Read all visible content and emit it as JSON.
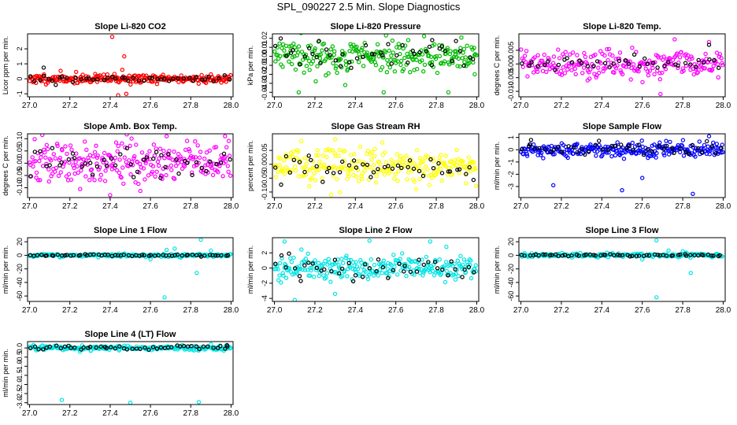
{
  "figure": {
    "title": "SPL_090227  2.5 Min. Slope Diagnostics",
    "point_colors": {
      "black": "#000000"
    }
  },
  "chart_data": [
    {
      "type": "scatter",
      "title": "Slope Li-820 CO2",
      "ylabel": "Licor ppm per min.",
      "xlabel": "",
      "xlim": [
        26.99,
        28.01
      ],
      "ylim": [
        -1.2,
        3.0
      ],
      "xticks": [
        27.0,
        27.2,
        27.4,
        27.6,
        27.8,
        28.0
      ],
      "xtick_labels": [
        "27.0",
        "27.2",
        "27.4",
        "27.6",
        "27.8",
        "28.0"
      ],
      "yticks": [
        -1,
        0,
        1,
        2
      ],
      "ytick_labels": [
        "-1",
        "0",
        "1",
        "2"
      ],
      "grid": false,
      "series": [
        {
          "name": "all",
          "color": "#ff0000",
          "center": 0.0,
          "spread": 0.15,
          "count": 260,
          "seed": 11,
          "outliers": [
            [
              27.41,
              2.8
            ],
            [
              27.44,
              -1.1
            ],
            [
              27.47,
              1.5
            ],
            [
              27.48,
              -1.0
            ],
            [
              27.46,
              0.6
            ]
          ]
        },
        {
          "name": "black",
          "color": "#000000",
          "center": 0.0,
          "spread": 0.12,
          "count": 45,
          "seed": 12,
          "outliers": [
            [
              27.07,
              0.75
            ],
            [
              27.13,
              -0.4
            ]
          ]
        }
      ]
    },
    {
      "type": "scatter",
      "title": "Slope Li-820 Pressure",
      "ylabel": "kPa per min.",
      "xlabel": "",
      "xlim": [
        26.99,
        28.01
      ],
      "ylim": [
        -0.045,
        0.025
      ],
      "xticks": [
        27.0,
        27.2,
        27.4,
        27.6,
        27.8,
        28.0
      ],
      "xtick_labels": [
        "27.0",
        "27.2",
        "27.4",
        "27.6",
        "27.8",
        "28.0"
      ],
      "yticks": [
        -0.04,
        -0.03,
        -0.02,
        -0.01,
        0.0,
        0.01,
        0.02
      ],
      "ytick_labels": [
        "-0.04",
        "-0.03",
        "-0.02",
        "-0.01",
        "0.00",
        "0.01",
        "0.02"
      ],
      "grid": false,
      "series": [
        {
          "name": "all",
          "color": "#00bb00",
          "center": 0.0,
          "spread": 0.009,
          "count": 260,
          "seed": 21,
          "outliers": [
            [
              27.12,
              -0.04
            ],
            [
              27.35,
              -0.032
            ],
            [
              27.54,
              -0.04
            ],
            [
              27.86,
              -0.04
            ],
            [
              27.99,
              -0.02
            ]
          ]
        },
        {
          "name": "black",
          "color": "#000000",
          "center": 0.002,
          "spread": 0.008,
          "count": 45,
          "seed": 22,
          "outliers": [
            [
              27.22,
              0.017
            ],
            [
              27.78,
              0.018
            ]
          ]
        }
      ]
    },
    {
      "type": "scatter",
      "title": "Slope Li-820 Temp.",
      "ylabel": "degrees C per min.",
      "xlabel": "",
      "xlim": [
        26.99,
        28.01
      ],
      "ylim": [
        -0.012,
        0.011
      ],
      "xticks": [
        27.0,
        27.2,
        27.4,
        27.6,
        27.8,
        28.0
      ],
      "xtick_labels": [
        "27.0",
        "27.2",
        "27.4",
        "27.6",
        "27.8",
        "28.0"
      ],
      "yticks": [
        -0.01,
        -0.005,
        0.0,
        0.005
      ],
      "ytick_labels": [
        "-0.010",
        "-0.005",
        "0.000",
        "0.005"
      ],
      "grid": false,
      "series": [
        {
          "name": "all",
          "color": "#ff00ff",
          "center": 0.0,
          "spread": 0.0025,
          "count": 240,
          "seed": 31,
          "outliers": [
            [
              27.76,
              0.009
            ],
            [
              27.69,
              -0.011
            ],
            [
              27.33,
              -0.006
            ],
            [
              27.93,
              0.008
            ]
          ]
        },
        {
          "name": "black",
          "color": "#000000",
          "center": 0.0005,
          "spread": 0.0015,
          "count": 40,
          "seed": 32,
          "outliers": [
            [
              27.93,
              0.007
            ]
          ]
        }
      ]
    },
    {
      "type": "scatter",
      "title": "Slope Amb. Box Temp.",
      "ylabel": "degrees C per min.",
      "xlabel": "",
      "xlim": [
        26.99,
        28.01
      ],
      "ylim": [
        -0.14,
        0.12
      ],
      "xticks": [
        27.0,
        27.2,
        27.4,
        27.6,
        27.8,
        28.0
      ],
      "xtick_labels": [
        "27.0",
        "27.2",
        "27.4",
        "27.6",
        "27.8",
        "28.0"
      ],
      "yticks": [
        -0.1,
        -0.05,
        0.0,
        0.05,
        0.1
      ],
      "ytick_labels": [
        "-0.10",
        "-0.05",
        "0.00",
        "0.05",
        "0.10"
      ],
      "grid": false,
      "series": [
        {
          "name": "all",
          "color": "#ff00ff",
          "center": 0.0,
          "spread": 0.045,
          "count": 260,
          "seed": 41,
          "outliers": [
            [
              27.4,
              -0.13
            ],
            [
              27.68,
              0.11
            ],
            [
              27.97,
              0.11
            ]
          ]
        },
        {
          "name": "black",
          "color": "#000000",
          "center": 0.005,
          "spread": 0.03,
          "count": 45,
          "seed": 42,
          "outliers": [
            [
              27.65,
              -0.06
            ]
          ]
        }
      ]
    },
    {
      "type": "scatter",
      "title": "Slope Gas Stream RH",
      "ylabel": "percent per min.",
      "xlabel": "",
      "xlim": [
        26.99,
        28.01
      ],
      "ylim": [
        -0.12,
        0.11
      ],
      "xticks": [
        27.0,
        27.2,
        27.4,
        27.6,
        27.8,
        28.0
      ],
      "xtick_labels": [
        "27.0",
        "27.2",
        "27.4",
        "27.6",
        "27.8",
        "28.0"
      ],
      "yticks": [
        -0.1,
        -0.05,
        0.0,
        0.05
      ],
      "ytick_labels": [
        "-0.10",
        "-0.05",
        "0.00",
        "0.05"
      ],
      "grid": false,
      "series": [
        {
          "name": "all",
          "color": "#ffff00",
          "center": -0.005,
          "spread": 0.03,
          "count": 260,
          "seed": 51,
          "outliers": [
            [
              27.28,
              -0.11
            ],
            [
              27.3,
              0.09
            ],
            [
              27.7,
              -0.09
            ]
          ]
        },
        {
          "name": "black",
          "color": "#000000",
          "center": -0.01,
          "spread": 0.025,
          "count": 45,
          "seed": 52,
          "outliers": []
        }
      ]
    },
    {
      "type": "scatter",
      "title": "Slope Sample Flow",
      "ylabel": "ml/min per min.",
      "xlabel": "",
      "xlim": [
        26.99,
        28.01
      ],
      "ylim": [
        -3.9,
        1.3
      ],
      "xticks": [
        27.0,
        27.2,
        27.4,
        27.6,
        27.8,
        28.0
      ],
      "xtick_labels": [
        "27.0",
        "27.2",
        "27.4",
        "27.6",
        "27.8",
        "28.0"
      ],
      "yticks": [
        -3,
        -2,
        -1,
        0,
        1
      ],
      "ytick_labels": [
        "-3",
        "-2",
        "-1",
        "0",
        "1"
      ],
      "grid": false,
      "series": [
        {
          "name": "all",
          "color": "#0000ff",
          "center": 0.0,
          "spread": 0.3,
          "count": 260,
          "seed": 61,
          "outliers": [
            [
              27.16,
              -2.9
            ],
            [
              27.5,
              -3.3
            ],
            [
              27.6,
              -2.3
            ],
            [
              27.85,
              -3.6
            ],
            [
              27.93,
              1.1
            ]
          ]
        },
        {
          "name": "black",
          "color": "#000000",
          "center": 0.05,
          "spread": 0.3,
          "count": 45,
          "seed": 62,
          "outliers": [
            [
              27.05,
              0.8
            ]
          ]
        }
      ]
    },
    {
      "type": "scatter",
      "title": "Slope Line 1 Flow",
      "ylabel": "ml/min per min.",
      "xlabel": "",
      "xlim": [
        26.99,
        28.01
      ],
      "ylim": [
        -68,
        26
      ],
      "xticks": [
        27.0,
        27.2,
        27.4,
        27.6,
        27.8,
        28.0
      ],
      "xtick_labels": [
        "27.0",
        "27.2",
        "27.4",
        "27.6",
        "27.8",
        "28.0"
      ],
      "yticks": [
        -60,
        -40,
        -20,
        0,
        20
      ],
      "ytick_labels": [
        "-60",
        "-40",
        "-20",
        "0",
        "20"
      ],
      "grid": false,
      "series": [
        {
          "name": "all",
          "color": "#00e5e5",
          "center": 0.0,
          "spread": 1.2,
          "count": 200,
          "seed": 71,
          "outliers": [
            [
              27.67,
              -62
            ],
            [
              27.83,
              -26
            ],
            [
              27.68,
              8
            ],
            [
              27.72,
              10
            ],
            [
              27.85,
              23
            ],
            [
              27.9,
              7
            ],
            [
              27.6,
              -6
            ]
          ]
        },
        {
          "name": "black",
          "color": "#000000",
          "center": 0.0,
          "spread": 0.6,
          "count": 60,
          "seed": 72,
          "outliers": []
        }
      ]
    },
    {
      "type": "scatter",
      "title": "Slope Line 2 Flow",
      "ylabel": "ml/min per min.",
      "xlabel": "",
      "xlim": [
        26.99,
        28.01
      ],
      "ylim": [
        -4.4,
        4.0
      ],
      "xticks": [
        27.0,
        27.2,
        27.4,
        27.6,
        27.8,
        28.0
      ],
      "xtick_labels": [
        "27.0",
        "27.2",
        "27.4",
        "27.6",
        "27.8",
        "28.0"
      ],
      "yticks": [
        -4,
        -2,
        0,
        2
      ],
      "ytick_labels": [
        "-4",
        "-2",
        "0",
        "2"
      ],
      "grid": false,
      "series": [
        {
          "name": "all",
          "color": "#00e5e5",
          "center": 0.0,
          "spread": 0.8,
          "count": 260,
          "seed": 81,
          "outliers": [
            [
              27.1,
              -4.2
            ],
            [
              27.3,
              -3.4
            ],
            [
              27.05,
              3.5
            ],
            [
              27.47,
              3.6
            ],
            [
              27.77,
              3.5
            ],
            [
              27.85,
              2.8
            ]
          ]
        },
        {
          "name": "black",
          "color": "#000000",
          "center": 0.0,
          "spread": 0.7,
          "count": 45,
          "seed": 82,
          "outliers": [
            [
              27.13,
              -1.7
            ]
          ]
        }
      ]
    },
    {
      "type": "scatter",
      "title": "Slope Line 3 Flow",
      "ylabel": "ml/min per min.",
      "xlabel": "",
      "xlim": [
        26.99,
        28.01
      ],
      "ylim": [
        -68,
        26
      ],
      "xticks": [
        27.0,
        27.2,
        27.4,
        27.6,
        27.8,
        28.0
      ],
      "xtick_labels": [
        "27.0",
        "27.2",
        "27.4",
        "27.6",
        "27.8",
        "28.0"
      ],
      "yticks": [
        -60,
        -40,
        -20,
        0,
        20
      ],
      "ytick_labels": [
        "-60",
        "-40",
        "-20",
        "0",
        "20"
      ],
      "grid": false,
      "series": [
        {
          "name": "all",
          "color": "#00e5e5",
          "center": 0.0,
          "spread": 1.5,
          "count": 200,
          "seed": 91,
          "outliers": [
            [
              27.67,
              -62
            ],
            [
              27.84,
              -26
            ],
            [
              27.67,
              22
            ],
            [
              27.73,
              7
            ],
            [
              27.8,
              6
            ],
            [
              27.6,
              -6
            ]
          ]
        },
        {
          "name": "black",
          "color": "#000000",
          "center": 0.0,
          "spread": 0.8,
          "count": 60,
          "seed": 92,
          "outliers": []
        }
      ]
    },
    {
      "type": "scatter",
      "title": "Slope Line 4 (LT) Flow",
      "ylabel": "ml/min per min.",
      "xlabel": "",
      "xlim": [
        26.99,
        28.01
      ],
      "ylim": [
        -3.1,
        0.35
      ],
      "xticks": [
        27.0,
        27.2,
        27.4,
        27.6,
        27.8,
        28.0
      ],
      "xtick_labels": [
        "27.0",
        "27.2",
        "27.4",
        "27.6",
        "27.8",
        "28.0"
      ],
      "yticks": [
        -3.0,
        -2.5,
        -2.0,
        -1.5,
        -1.0,
        -0.5,
        0.0
      ],
      "ytick_labels": [
        "-3.0",
        "-2.5",
        "-2.0",
        "-1.5",
        "-1.0",
        "-0.5",
        "0.0"
      ],
      "grid": false,
      "series": [
        {
          "name": "all",
          "color": "#00e5e5",
          "center": 0.0,
          "spread": 0.06,
          "count": 220,
          "seed": 101,
          "outliers": [
            [
              27.16,
              -2.85
            ],
            [
              27.5,
              -3.0
            ],
            [
              27.84,
              -2.97
            ],
            [
              27.25,
              -0.2
            ],
            [
              27.9,
              0.2
            ]
          ]
        },
        {
          "name": "black",
          "color": "#000000",
          "center": 0.02,
          "spread": 0.05,
          "count": 50,
          "seed": 102,
          "outliers": [
            [
              27.98,
              0.15
            ]
          ]
        }
      ]
    }
  ]
}
